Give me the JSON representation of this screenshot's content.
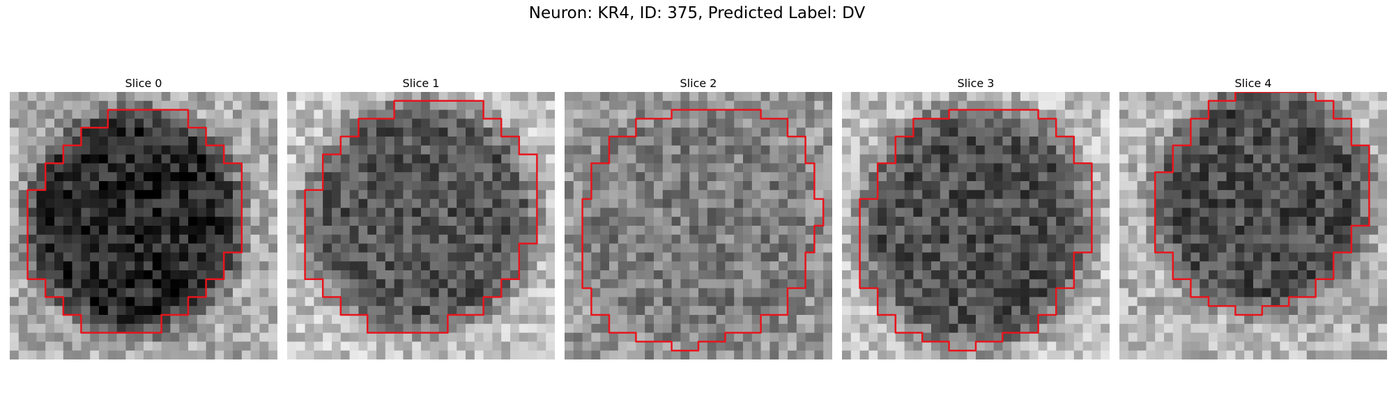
{
  "figure": {
    "title": "Neuron: KR4, ID: 375, Predicted Label: DV"
  },
  "slices": [
    {
      "label": "Slice 0",
      "core_gray": 40,
      "background_gray": 170
    },
    {
      "label": "Slice 1",
      "core_gray": 85,
      "background_gray": 195
    },
    {
      "label": "Slice 2",
      "core_gray": 125,
      "background_gray": 150
    },
    {
      "label": "Slice 3",
      "core_gray": 80,
      "background_gray": 190
    },
    {
      "label": "Slice 4",
      "core_gray": 75,
      "background_gray": 180
    }
  ],
  "colors": {
    "contour": "#e8141c",
    "background": "#ffffff"
  }
}
